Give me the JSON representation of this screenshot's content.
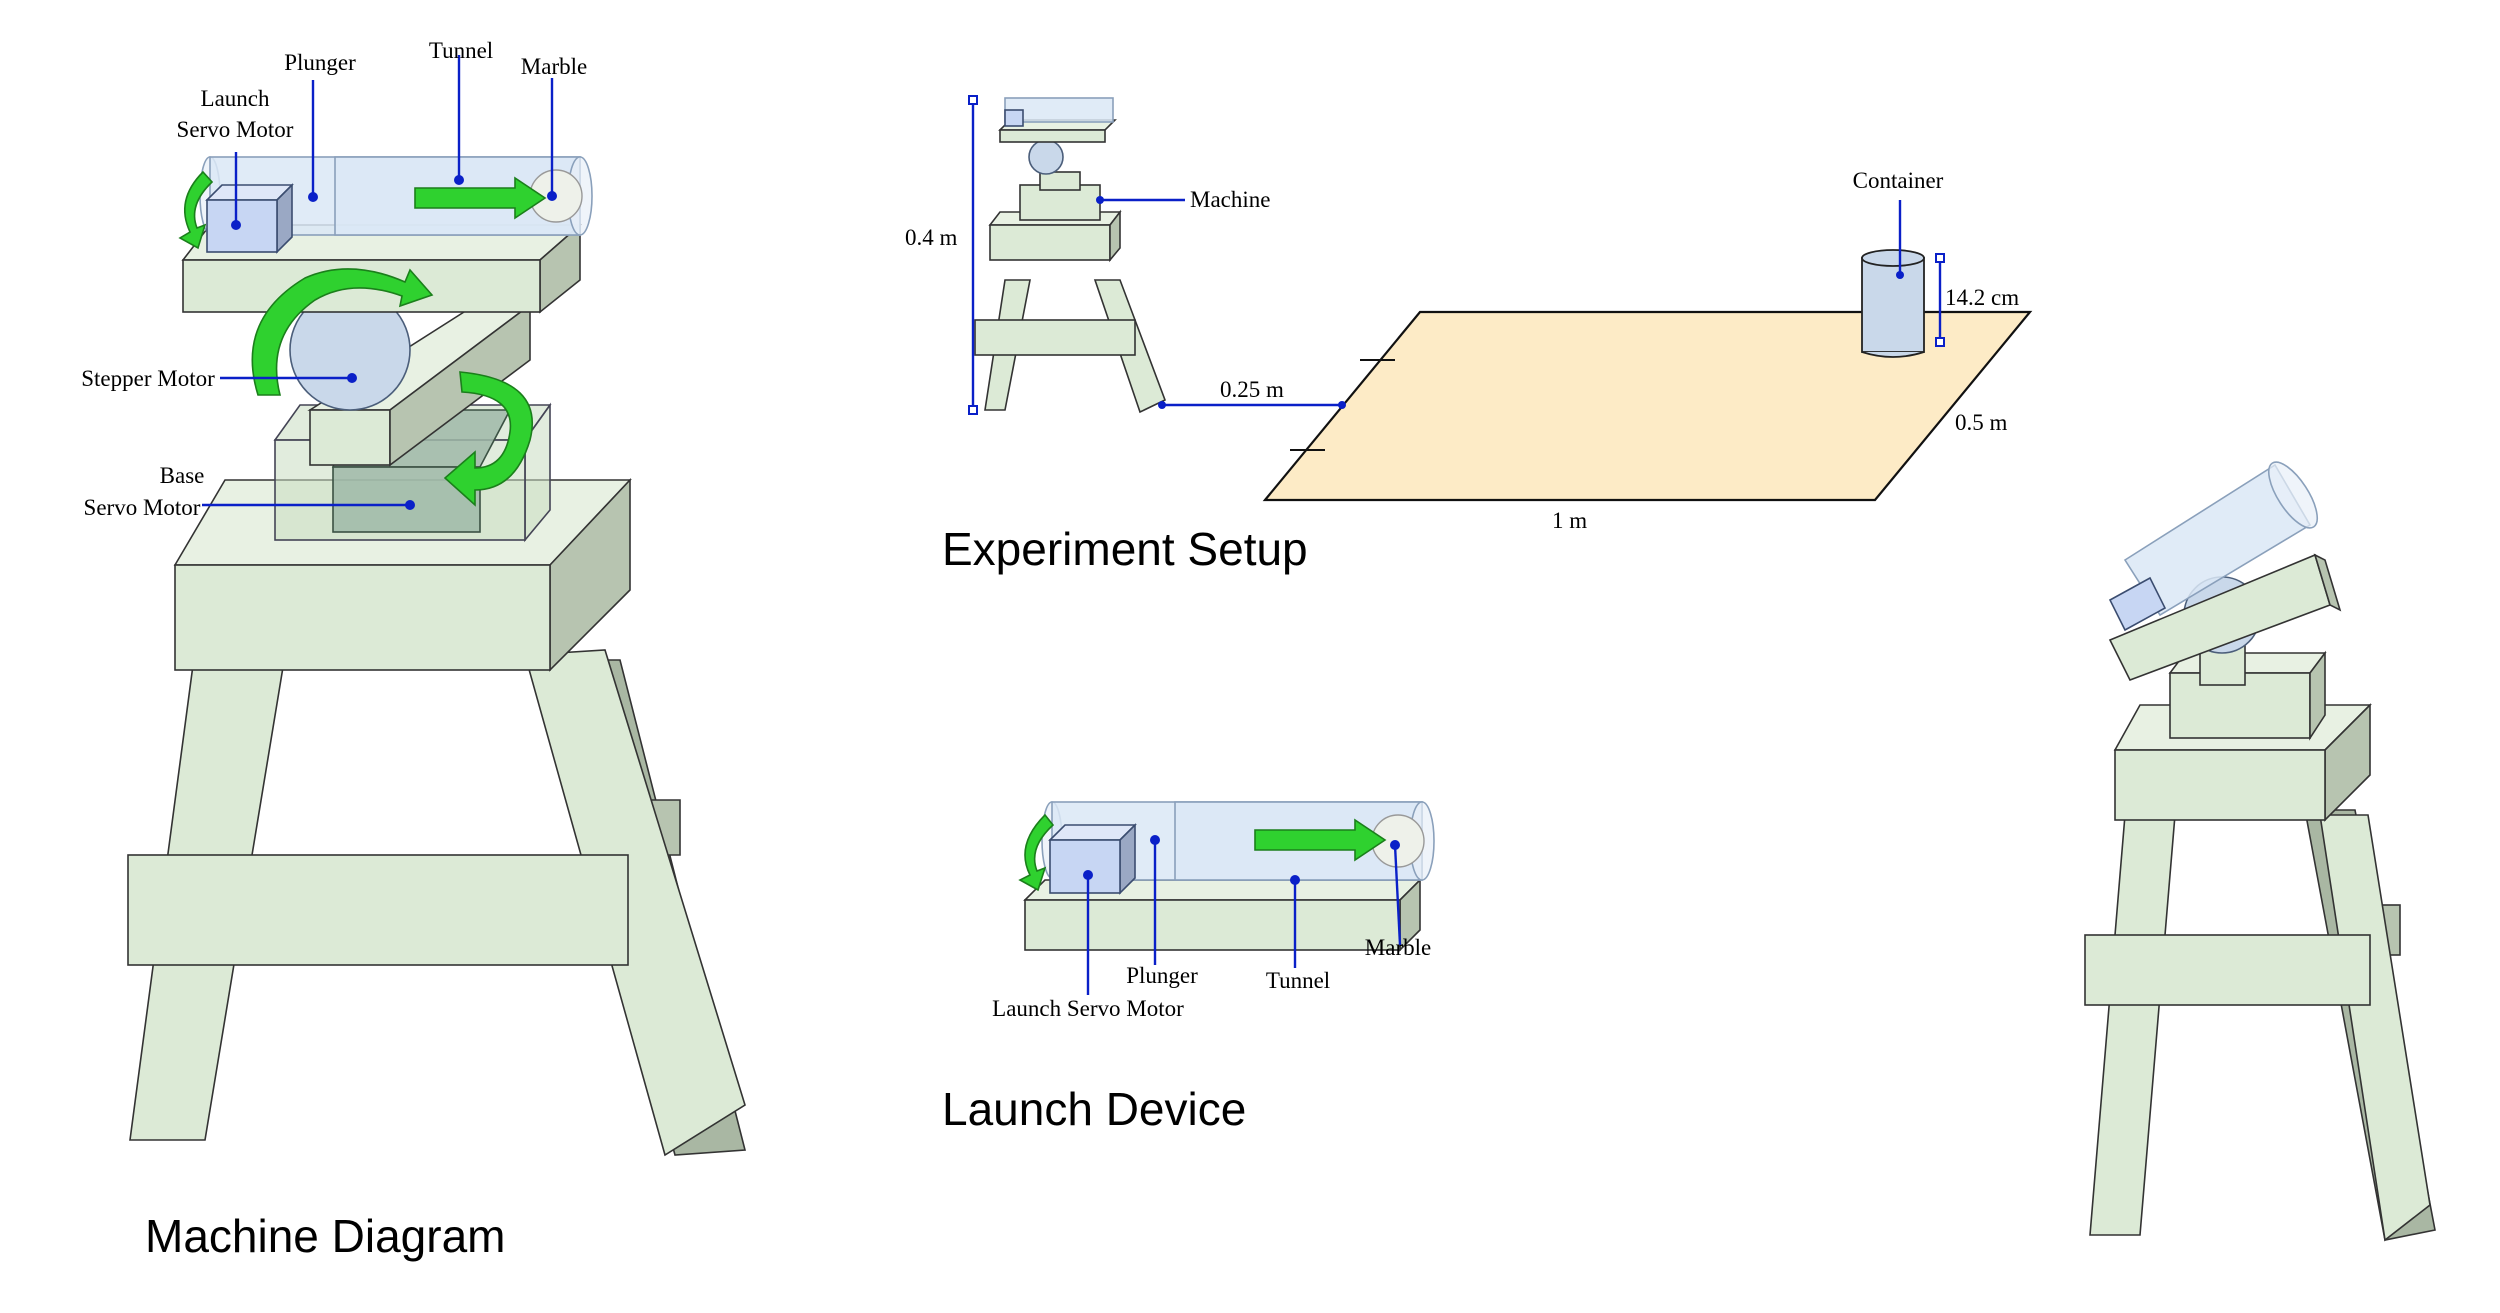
{
  "titles": {
    "machine_diagram": "Machine Diagram",
    "experiment_setup": "Experiment Setup",
    "launch_device": "Launch Device"
  },
  "machine_labels": {
    "launch_servo_line1": "Launch",
    "launch_servo_line2": "Servo Motor",
    "plunger": "Plunger",
    "tunnel": "Tunnel",
    "marble": "Marble",
    "stepper_motor": "Stepper Motor",
    "base_servo_line1": "Base",
    "base_servo_line2": "Servo Motor"
  },
  "setup_labels": {
    "machine": "Machine",
    "container": "Container",
    "height": "0.4 m",
    "distance": "0.25 m",
    "container_height": "14.2 cm",
    "depth": "0.5 m",
    "width": "1 m"
  },
  "launch_labels": {
    "plunger": "Plunger",
    "tunnel": "Tunnel",
    "marble": "Marble",
    "launch_servo": "Launch Servo Motor"
  },
  "colors": {
    "wood": "#dcead6",
    "tube": "#dbe8f6",
    "arrow": "#2fd12f",
    "leader": "#0a20c8",
    "floor": "#fdebc6"
  }
}
